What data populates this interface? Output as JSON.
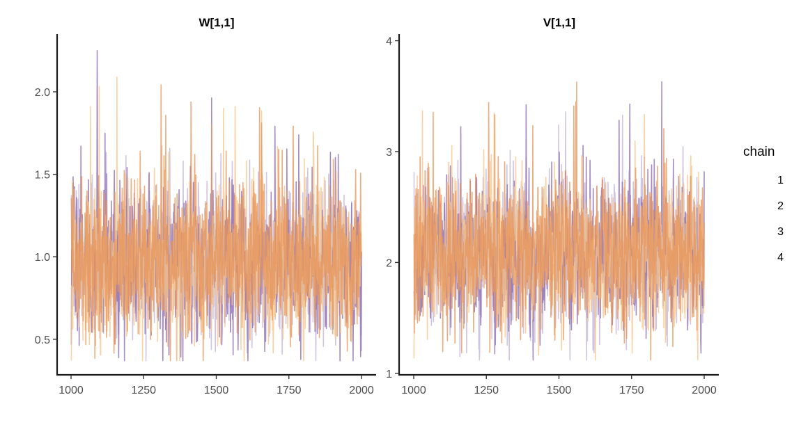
{
  "chart_data": [
    {
      "type": "line",
      "title": "W[1,1]",
      "xlabel": "",
      "ylabel": "",
      "xlim": [
        1000,
        2000
      ],
      "ylim": [
        0.28,
        2.35
      ],
      "x_ticks": [
        1000,
        1250,
        1500,
        1750,
        2000
      ],
      "y_ticks": [
        0.5,
        1.0,
        1.5,
        2.0
      ],
      "x_tick_labels": [
        "1000",
        "1250",
        "1500",
        "1750",
        "2000"
      ],
      "y_tick_labels": [
        "0.5",
        "1.0",
        "1.5",
        "2.0"
      ],
      "x": {
        "start": 1001,
        "end": 2000,
        "step": 1
      },
      "series_params": {
        "center": 0.98,
        "spread": 0.22,
        "floor": 0.37,
        "ceiling": 2.25
      },
      "series": [
        {
          "name": "1",
          "color": "#cdc3e0",
          "seed": 11
        },
        {
          "name": "2",
          "color": "#8c6bb1",
          "seed": 23
        },
        {
          "name": "3",
          "color": "#f7c58c",
          "seed": 37
        },
        {
          "name": "4",
          "color": "#e8965a",
          "seed": 53
        }
      ],
      "grid": false,
      "legend": "right"
    },
    {
      "type": "line",
      "title": "V[1,1]",
      "xlabel": "",
      "ylabel": "",
      "xlim": [
        1000,
        2000
      ],
      "ylim": [
        0.98,
        4.06
      ],
      "x_ticks": [
        1000,
        1250,
        1500,
        1750,
        2000
      ],
      "y_ticks": [
        1,
        2,
        3,
        4
      ],
      "x_tick_labels": [
        "1000",
        "1250",
        "1500",
        "1750",
        "2000"
      ],
      "y_tick_labels": [
        "1",
        "2",
        "3",
        "4"
      ],
      "x": {
        "start": 1001,
        "end": 2000,
        "step": 1
      },
      "series_params": {
        "center": 2.08,
        "spread": 0.3,
        "floor": 1.12,
        "ceiling": 3.92
      },
      "series": [
        {
          "name": "1",
          "color": "#cdc3e0",
          "seed": 71
        },
        {
          "name": "2",
          "color": "#8c6bb1",
          "seed": 83
        },
        {
          "name": "3",
          "color": "#f7c58c",
          "seed": 97
        },
        {
          "name": "4",
          "color": "#e8965a",
          "seed": 113
        }
      ],
      "grid": false,
      "legend": "right"
    }
  ],
  "legend": {
    "title": "chain",
    "items": [
      {
        "label": "1",
        "color": "#cdc3e0"
      },
      {
        "label": "2",
        "color": "#8c6bb1"
      },
      {
        "label": "3",
        "color": "#f7c58c"
      },
      {
        "label": "4",
        "color": "#e8965a"
      }
    ]
  }
}
